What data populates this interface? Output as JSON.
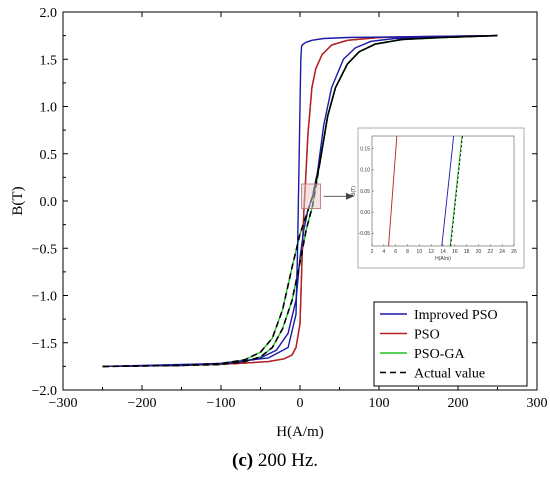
{
  "chart_data": {
    "type": "line",
    "title": "",
    "xlabel": "H(A/m)",
    "ylabel": "B(T)",
    "xlim": [
      -300,
      300
    ],
    "ylim": [
      -2.0,
      2.0
    ],
    "x_ticks": [
      "−300",
      "−200",
      "−100",
      "0",
      "100",
      "200",
      "300"
    ],
    "y_ticks": [
      "−2.0",
      "−1.5",
      "−1.0",
      "−0.5",
      "0.0",
      "0.5",
      "1.0",
      "1.5",
      "2.0"
    ],
    "grid": false,
    "legend_position": "bottom-right",
    "series": [
      {
        "name": "Improved PSO",
        "color": "#1a1aa6",
        "dash": "solid",
        "ascending": {
          "x": [
            -250,
            -150,
            -80,
            -50,
            -30,
            -15,
            -5,
            0,
            5,
            10,
            16,
            22,
            30,
            40,
            55,
            70,
            90,
            120,
            160,
            200,
            250
          ],
          "y": [
            -1.75,
            -1.74,
            -1.71,
            -1.66,
            -1.58,
            -1.4,
            -1.05,
            -0.6,
            -0.3,
            -0.1,
            0.05,
            0.3,
            0.8,
            1.2,
            1.5,
            1.62,
            1.69,
            1.72,
            1.73,
            1.74,
            1.75
          ]
        },
        "descending": {
          "x": [
            250,
            150,
            60,
            30,
            15,
            8,
            4,
            2,
            1,
            0,
            -1,
            -2,
            -3,
            -5,
            -15,
            -40,
            -100,
            -250
          ],
          "y": [
            1.75,
            1.74,
            1.73,
            1.72,
            1.7,
            1.68,
            1.66,
            1.64,
            1.5,
            1.0,
            0.5,
            0.0,
            -0.5,
            -1.2,
            -1.55,
            -1.66,
            -1.72,
            -1.75
          ]
        }
      },
      {
        "name": "PSO",
        "color": "#b22222",
        "dash": "solid",
        "ascending": {
          "x": [
            -250,
            -150,
            -80,
            -40,
            -20,
            -10,
            -5,
            0,
            3,
            5,
            7,
            10,
            15,
            20,
            28,
            40,
            60,
            100,
            160,
            250
          ],
          "y": [
            -1.75,
            -1.74,
            -1.72,
            -1.7,
            -1.67,
            -1.63,
            -1.55,
            -1.3,
            -0.5,
            -0.1,
            0.2,
            0.7,
            1.2,
            1.4,
            1.55,
            1.65,
            1.7,
            1.73,
            1.74,
            1.75
          ]
        },
        "descending": {
          "x": [
            250,
            160,
            100,
            60,
            40,
            28,
            20,
            15,
            10,
            7,
            5,
            3,
            0,
            -5,
            -10,
            -20,
            -40,
            -80,
            -150,
            -250
          ],
          "y": [
            1.75,
            1.74,
            1.73,
            1.7,
            1.65,
            1.55,
            1.4,
            1.2,
            0.7,
            0.2,
            -0.1,
            -0.5,
            -1.3,
            -1.55,
            -1.63,
            -1.67,
            -1.7,
            -1.72,
            -1.74,
            -1.75
          ]
        }
      },
      {
        "name": "PSO-GA",
        "color": "#22c322",
        "dash": "solid",
        "ascending": {
          "x": [
            -250,
            -150,
            -100,
            -70,
            -50,
            -35,
            -22,
            -10,
            0,
            8,
            16,
            25,
            35,
            45,
            60,
            75,
            95,
            130,
            180,
            250
          ],
          "y": [
            -1.75,
            -1.74,
            -1.72,
            -1.68,
            -1.6,
            -1.45,
            -1.15,
            -0.7,
            -0.35,
            -0.15,
            0.05,
            0.4,
            0.9,
            1.2,
            1.45,
            1.58,
            1.66,
            1.71,
            1.73,
            1.75
          ]
        },
        "descending": {
          "x": [
            250,
            180,
            130,
            95,
            75,
            60,
            45,
            35,
            25,
            16,
            8,
            0,
            -10,
            -22,
            -35,
            -50,
            -70,
            -100,
            -150,
            -250
          ],
          "y": [
            1.75,
            1.73,
            1.71,
            1.66,
            1.58,
            1.45,
            1.2,
            0.9,
            0.4,
            -0.05,
            -0.3,
            -0.65,
            -1.05,
            -1.35,
            -1.55,
            -1.65,
            -1.7,
            -1.73,
            -1.74,
            -1.75
          ]
        }
      },
      {
        "name": "Actual value",
        "color": "#000000",
        "dash": "dashed",
        "ascending": {
          "x": [
            -250,
            -150,
            -100,
            -70,
            -50,
            -35,
            -22,
            -10,
            0,
            8,
            16,
            25,
            35,
            45,
            60,
            75,
            95,
            130,
            180,
            250
          ],
          "y": [
            -1.75,
            -1.74,
            -1.72,
            -1.68,
            -1.6,
            -1.45,
            -1.15,
            -0.7,
            -0.35,
            -0.15,
            0.05,
            0.4,
            0.9,
            1.2,
            1.45,
            1.58,
            1.66,
            1.71,
            1.73,
            1.75
          ]
        },
        "descending": {
          "x": [
            250,
            180,
            130,
            95,
            75,
            60,
            45,
            35,
            25,
            16,
            8,
            0,
            -10,
            -22,
            -35,
            -50,
            -70,
            -100,
            -150,
            -250
          ],
          "y": [
            1.75,
            1.73,
            1.71,
            1.66,
            1.58,
            1.45,
            1.2,
            0.9,
            0.4,
            -0.05,
            -0.3,
            -0.65,
            -1.05,
            -1.35,
            -1.55,
            -1.65,
            -1.7,
            -1.73,
            -1.74,
            -1.75
          ]
        }
      }
    ],
    "zoom_region": {
      "xlim": [
        2,
        26
      ],
      "ylim": [
        -0.08,
        0.18
      ]
    },
    "inset": {
      "xlabel": "H(A/m)",
      "ylabel": "B(T)",
      "xlim": [
        2,
        26
      ],
      "ylim": [
        -0.08,
        0.18
      ],
      "x_ticks": [
        2,
        4,
        6,
        8,
        10,
        12,
        14,
        16,
        18,
        20,
        22,
        24,
        26
      ],
      "y_ticks": [
        "-0.05",
        "0.00",
        "0.05",
        "0.10",
        "0.15"
      ],
      "y_tick_values": [
        -0.05,
        0.0,
        0.05,
        0.1,
        0.15
      ],
      "lines": [
        {
          "series": "PSO",
          "x": [
            4.8,
            6.2
          ],
          "y": [
            -0.08,
            0.18
          ]
        },
        {
          "series": "Improved PSO",
          "x": [
            13.8,
            15.8
          ],
          "y": [
            -0.08,
            0.18
          ]
        },
        {
          "series": "PSO-GA",
          "x": [
            15.2,
            17.2
          ],
          "y": [
            -0.08,
            0.18
          ]
        },
        {
          "series": "Actual value",
          "x": [
            15.3,
            17.3
          ],
          "y": [
            -0.08,
            0.18
          ]
        }
      ]
    }
  },
  "caption": {
    "label": "(c)",
    "text": " 200 Hz."
  }
}
